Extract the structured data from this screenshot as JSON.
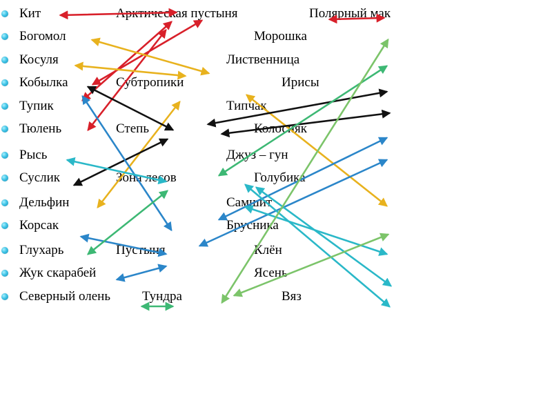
{
  "rows": [
    {
      "col1": "Кит",
      "col2": "Арктическая пустыня",
      "col3": "Полярный мак"
    },
    {
      "col1": " Богомол",
      "col2": "",
      "col3": "Морошка"
    },
    {
      "col1": "Косуля",
      "col2": "",
      "col3": "Лиственница"
    },
    {
      "col1": "Кобылка",
      "col2": "Субтропики",
      "col3": "Ирисы"
    },
    {
      "col1": "Тупик",
      "col2": "",
      "col3": "Типчак"
    },
    {
      "col1": "Тюлень",
      "col2": "Степь",
      "col3": "Колосняк"
    },
    {
      "col1": "Рысь",
      "col2": "",
      "col3": "Джуз – гун"
    },
    {
      "col1": "Суслик",
      "col2": "Зона лесов",
      "col3": "Голубика"
    },
    {
      "col1": "Дельфин",
      "col2": "",
      "col3": "Самшит"
    },
    {
      "col1": "Корсак",
      "col2": "",
      "col3": "Брусника"
    },
    {
      "col1": "Глухарь",
      "col2": "Пустыня",
      "col3": "Клён"
    },
    {
      "col1": "Жук скарабей",
      "col2": "",
      "col3": "Ясень"
    },
    {
      "col1": "Северный олень",
      "col2": "Тундра",
      "col3": "Вяз"
    }
  ],
  "colors": {
    "red": "#d8202a",
    "yellow": "#e8b21e",
    "black": "#111111",
    "blue": "#2b86c9",
    "cyan": "#2ab8c8",
    "green": "#3db874",
    "lightgreen": "#7cc46a"
  }
}
